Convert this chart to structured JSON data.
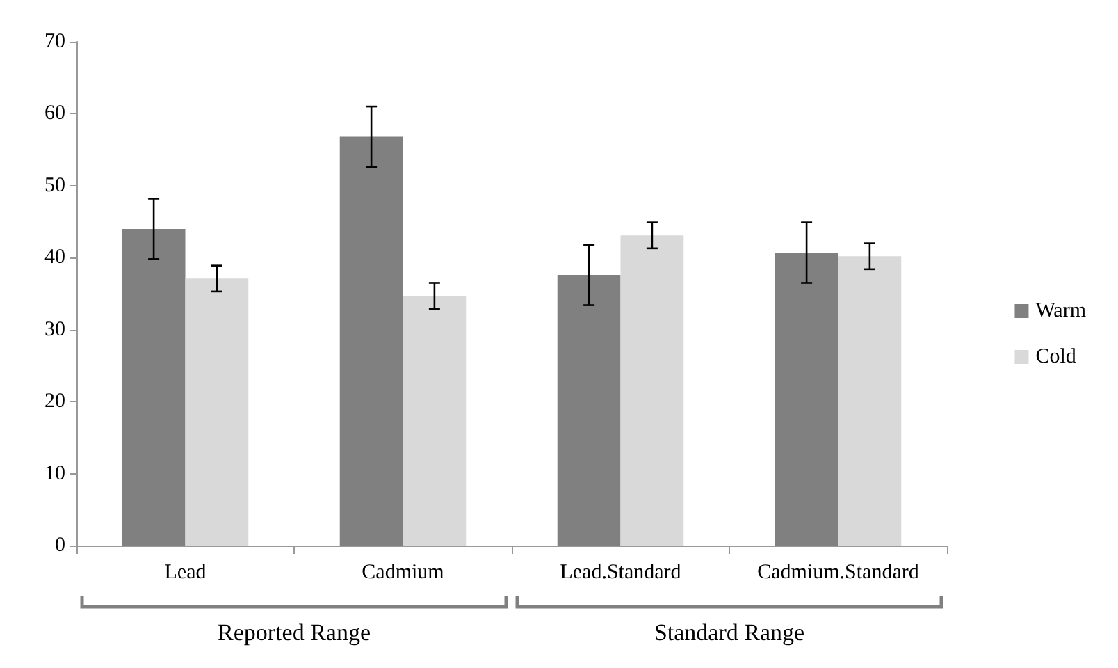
{
  "chart_data": {
    "type": "bar",
    "categories": [
      "Lead",
      "Cadmium",
      "Lead.Standard",
      "Cadmium.Standard"
    ],
    "series": [
      {
        "name": "Warm",
        "color": "#808080",
        "values": [
          44.0,
          56.8,
          37.6,
          40.7
        ],
        "errors": [
          4.2,
          4.2,
          4.2,
          4.2
        ]
      },
      {
        "name": "Cold",
        "color": "#d9d9d9",
        "values": [
          37.1,
          34.7,
          43.1,
          40.2
        ],
        "errors": [
          1.8,
          1.8,
          1.8,
          1.8
        ]
      }
    ],
    "ylim": [
      0,
      70
    ],
    "yticks": [
      0,
      10,
      20,
      30,
      40,
      50,
      60,
      70
    ],
    "grid": false,
    "legend": "right",
    "annotations": [
      "Reported Range",
      "Standard Range"
    ]
  }
}
